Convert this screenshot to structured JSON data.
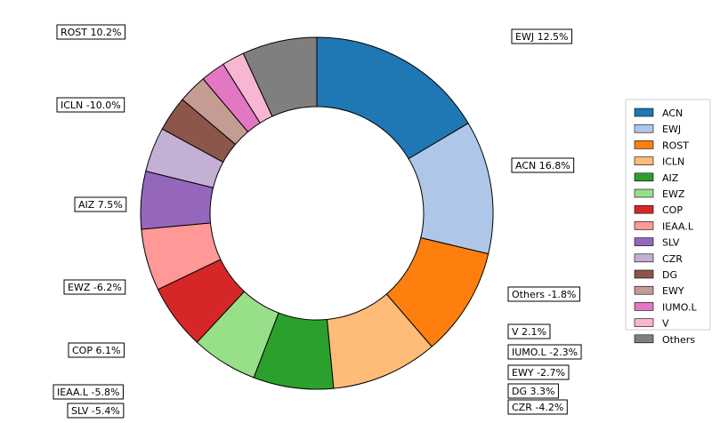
{
  "chart_data": {
    "type": "pie",
    "donut": true,
    "start_angle_deg": 90,
    "direction": "clockwise",
    "legend_position": "right",
    "slices": [
      {
        "name": "ACN",
        "label": "ACN 16.8%",
        "value": 16.8,
        "color": "#1f77b4"
      },
      {
        "name": "EWJ",
        "label": "EWJ 12.5%",
        "value": 12.5,
        "color": "#aec7e8"
      },
      {
        "name": "ROST",
        "label": "ROST 10.2%",
        "value": 10.2,
        "color": "#ff7f0e"
      },
      {
        "name": "ICLN",
        "label": "ICLN -10.0%",
        "value": 10.0,
        "color": "#ffbb78"
      },
      {
        "name": "AIZ",
        "label": "AIZ 7.5%",
        "value": 7.5,
        "color": "#2ca02c"
      },
      {
        "name": "EWZ",
        "label": "EWZ -6.2%",
        "value": 6.2,
        "color": "#98df8a"
      },
      {
        "name": "COP",
        "label": "COP 6.1%",
        "value": 6.1,
        "color": "#d62728"
      },
      {
        "name": "IEAA.L",
        "label": "IEAA.L -5.8%",
        "value": 5.8,
        "color": "#ff9896"
      },
      {
        "name": "SLV",
        "label": "SLV -5.4%",
        "value": 5.4,
        "color": "#9467bd"
      },
      {
        "name": "CZR",
        "label": "CZR -4.2%",
        "value": 4.2,
        "color": "#c5b0d5"
      },
      {
        "name": "DG",
        "label": "DG 3.3%",
        "value": 3.3,
        "color": "#8c564b"
      },
      {
        "name": "EWY",
        "label": "EWY -2.7%",
        "value": 2.7,
        "color": "#c49c94"
      },
      {
        "name": "IUMO.L",
        "label": "IUMO.L -2.3%",
        "value": 2.3,
        "color": "#e377c2"
      },
      {
        "name": "V",
        "label": "V 2.1%",
        "value": 2.1,
        "color": "#f7b6d2"
      },
      {
        "name": "Others",
        "label": "Others -1.8%",
        "value": 7.0,
        "color": "#7f7f7f"
      }
    ]
  }
}
